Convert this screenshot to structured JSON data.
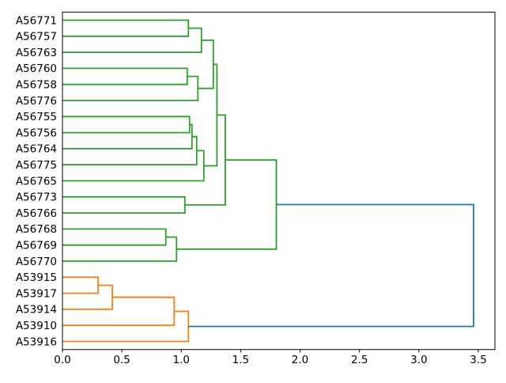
{
  "figure": {
    "background": "#ffffff",
    "axis_color": "#000000",
    "text_color": "#000000"
  },
  "chart_data": {
    "type": "dendrogram",
    "orientation": "right",
    "title": "",
    "xlabel": "",
    "ylabel": "",
    "grid": false,
    "legend": null,
    "x_axis": {
      "range": [
        0,
        3.64
      ],
      "ticks": [
        0,
        0.5,
        1.0,
        1.5,
        2.0,
        2.5,
        3.0,
        3.5
      ],
      "tick_labels": [
        "0.0",
        "0.5",
        "1.0",
        "1.5",
        "2.0",
        "2.5",
        "3.0",
        "3.5"
      ]
    },
    "leaves": [
      "A56771",
      "A56757",
      "A56763",
      "A56760",
      "A56758",
      "A56776",
      "A56755",
      "A56756",
      "A56764",
      "A56775",
      "A56765",
      "A56773",
      "A56766",
      "A56768",
      "A56769",
      "A56770",
      "A53915",
      "A53917",
      "A53914",
      "A53910",
      "A53916"
    ],
    "colors": {
      "green": "#2ca02c",
      "orange": "#ff7f0e",
      "blue": "#1f77b4"
    },
    "line_width": 1.8,
    "links": [
      {
        "children": [
          0,
          1
        ],
        "height": 1.06,
        "color": "green"
      },
      {
        "children": [
          21,
          2
        ],
        "height": 1.17,
        "color": "green"
      },
      {
        "children": [
          3,
          4
        ],
        "height": 1.05,
        "color": "green"
      },
      {
        "children": [
          23,
          5
        ],
        "height": 1.14,
        "color": "green"
      },
      {
        "children": [
          22,
          24
        ],
        "height": 1.27,
        "color": "green"
      },
      {
        "children": [
          6,
          7
        ],
        "height": 1.07,
        "color": "green"
      },
      {
        "children": [
          26,
          8
        ],
        "height": 1.09,
        "color": "green"
      },
      {
        "children": [
          27,
          9
        ],
        "height": 1.13,
        "color": "green"
      },
      {
        "children": [
          28,
          10
        ],
        "height": 1.19,
        "color": "green"
      },
      {
        "children": [
          25,
          29
        ],
        "height": 1.3,
        "color": "green"
      },
      {
        "children": [
          11,
          12
        ],
        "height": 1.03,
        "color": "green"
      },
      {
        "children": [
          30,
          31
        ],
        "height": 1.37,
        "color": "green"
      },
      {
        "children": [
          13,
          14
        ],
        "height": 0.87,
        "color": "green"
      },
      {
        "children": [
          33,
          15
        ],
        "height": 0.96,
        "color": "green"
      },
      {
        "children": [
          32,
          34
        ],
        "height": 1.8,
        "color": "green"
      },
      {
        "children": [
          16,
          17
        ],
        "height": 0.3,
        "color": "orange"
      },
      {
        "children": [
          36,
          18
        ],
        "height": 0.42,
        "color": "orange"
      },
      {
        "children": [
          37,
          19
        ],
        "height": 0.94,
        "color": "orange"
      },
      {
        "children": [
          38,
          20
        ],
        "height": 1.06,
        "color": "orange"
      },
      {
        "children": [
          35,
          39
        ],
        "height": 3.46,
        "color": "blue"
      }
    ],
    "max_merge_height": 3.46
  }
}
